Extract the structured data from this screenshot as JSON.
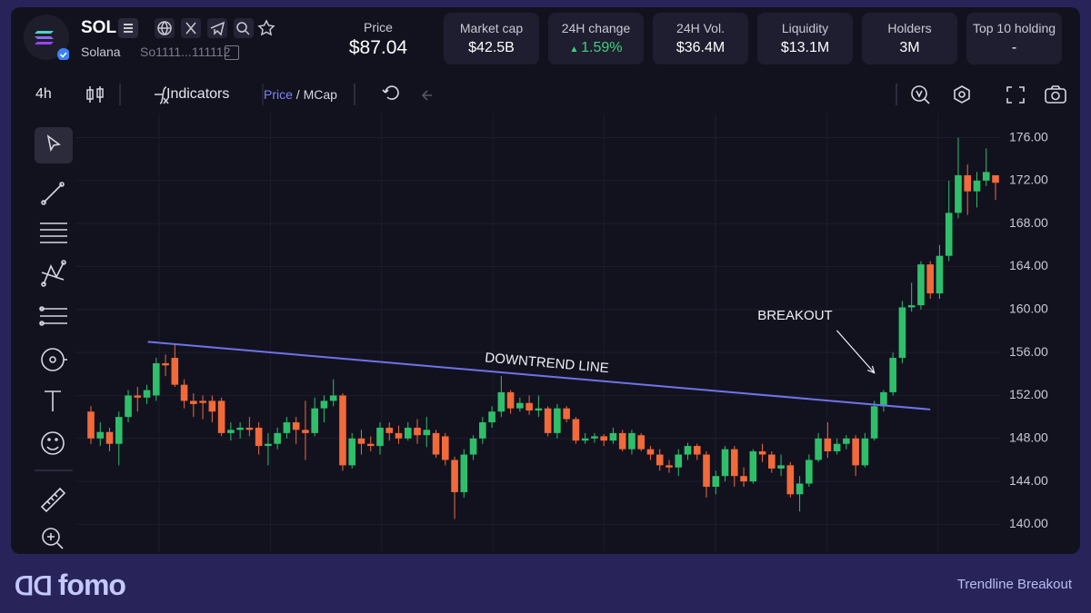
{
  "header": {
    "symbol": "SOL",
    "name": "Solana",
    "address": "So1111...111112",
    "price_label": "Price",
    "price": "$87.04",
    "stats": [
      {
        "label": "Market cap",
        "value": "$42.5B"
      },
      {
        "label": "24H change",
        "value": "1.59%"
      },
      {
        "label": "24H Vol.",
        "value": "$36.4M"
      },
      {
        "label": "Liquidity",
        "value": "$13.1M"
      },
      {
        "label": "Holders",
        "value": "3M"
      },
      {
        "label": "Top 10 holding",
        "value": "-"
      }
    ]
  },
  "toolbar": {
    "interval": "4h",
    "indicators": "Indicators",
    "price": "Price",
    "separator": " / ",
    "mcap": "MCap"
  },
  "chart_data": {
    "type": "candlestick",
    "open": [
      150.5,
      148,
      148.6,
      147.5,
      150,
      152,
      151.8,
      152,
      155,
      155.5,
      153,
      151.5,
      151.5,
      151.5,
      151.5,
      148.5,
      148.8,
      149,
      149,
      147.3,
      147.5,
      148.5,
      149.5,
      148.8,
      148.5,
      150.8,
      151.5,
      152,
      145.5,
      148,
      147.5,
      147.3,
      149,
      148.5,
      148,
      149,
      148.3,
      148.5,
      148.2,
      146,
      143,
      146.5,
      148,
      149.5,
      150.5,
      152.3,
      150.8,
      151.3,
      150.6,
      150.8,
      148.5,
      150.8,
      149.8,
      147.8,
      148,
      148.2,
      147.8,
      148.5,
      147,
      148.3,
      147,
      146.5,
      145.5,
      145.3,
      146.5,
      147.3,
      146.5,
      143.5,
      144.5,
      147,
      144.5,
      144,
      146.8,
      146.5,
      145.2,
      145.5,
      142.8,
      143.8,
      146,
      148,
      146.8,
      147.5,
      148,
      145.5,
      148,
      151,
      152.3,
      155.5,
      160.2,
      160.4,
      164.2,
      161.5,
      165,
      169,
      172.5,
      171,
      172,
      172.5
    ],
    "high": [
      151,
      149.5,
      149,
      150.5,
      152.5,
      152.8,
      153,
      155.5,
      155.8,
      156.8,
      153.5,
      152.2,
      152,
      152,
      151.8,
      149.5,
      149.5,
      150,
      149.5,
      148.5,
      149,
      150,
      150,
      151.5,
      151.8,
      152,
      153.5,
      152.2,
      148.5,
      148.8,
      148.2,
      149.5,
      149.5,
      149.2,
      149.5,
      149.8,
      150,
      148.8,
      148.5,
      146.3,
      147,
      148.3,
      150,
      151,
      153.8,
      152.5,
      151.8,
      152,
      152,
      151,
      151.2,
      151,
      150,
      148.5,
      148.5,
      148.4,
      149,
      148.8,
      148.8,
      148.5,
      147.3,
      147,
      146,
      147,
      147.6,
      147.5,
      146.8,
      145,
      147.3,
      147.3,
      145.3,
      147,
      147.5,
      146.8,
      146.5,
      145.8,
      144.5,
      146.5,
      148.5,
      149.5,
      148,
      148.3,
      148.3,
      148.5,
      151.5,
      152.5,
      156,
      160.8,
      162.5,
      164.5,
      164.5,
      166,
      172,
      176,
      173.5,
      172.8,
      175,
      172.5
    ],
    "low": [
      147.5,
      147.3,
      146.8,
      145.5,
      149.5,
      150.5,
      151.2,
      151.5,
      153.8,
      152.8,
      150.8,
      150,
      149.8,
      149.5,
      148.2,
      147.8,
      148,
      148.2,
      146.5,
      145.5,
      147,
      148,
      147.5,
      146,
      148.2,
      149.5,
      151,
      145,
      145.2,
      146.5,
      146.8,
      146.5,
      147.8,
      147.5,
      147.8,
      147.5,
      147.2,
      146.2,
      145.5,
      140.5,
      142.5,
      146,
      147.5,
      149,
      150,
      150.3,
      150.5,
      150.2,
      150,
      148.2,
      148,
      149.5,
      147.5,
      147.5,
      147.6,
      147.3,
      147.5,
      146.8,
      146.5,
      146.8,
      146,
      145,
      144.8,
      144.5,
      146,
      146,
      142.5,
      142.8,
      144,
      143.5,
      143.5,
      143.8,
      145.8,
      144.8,
      144.5,
      142.5,
      141.2,
      143.5,
      145.8,
      146.2,
      146.5,
      147,
      144.5,
      145.3,
      147.8,
      150.5,
      152,
      155,
      159.8,
      160,
      161,
      161,
      164.5,
      168.5,
      168.8,
      169.5,
      171.5,
      170.2
    ],
    "close": [
      148,
      148.6,
      147.5,
      150,
      152,
      151.8,
      152.5,
      155,
      154.8,
      153,
      151.5,
      151.2,
      151.3,
      150.5,
      148.5,
      148.8,
      149,
      148.8,
      147.3,
      147.5,
      148.5,
      149.5,
      148.8,
      148.5,
      150.8,
      151.5,
      152,
      145.5,
      148,
      147.5,
      147.3,
      149,
      148.5,
      148,
      149,
      148.3,
      148.8,
      146.5,
      146,
      143,
      146.5,
      148,
      149.5,
      150.5,
      152.3,
      150.8,
      151.3,
      150.6,
      150.8,
      148.5,
      150.8,
      149.8,
      147.8,
      148,
      148.2,
      147.8,
      148.5,
      147,
      148.5,
      147,
      146.5,
      145.5,
      145.3,
      146.5,
      147.3,
      146.5,
      143.5,
      144.5,
      147,
      144.5,
      144,
      146.8,
      146.5,
      145.2,
      145.5,
      142.8,
      143.8,
      146,
      148,
      146.8,
      147.5,
      148,
      145.5,
      148,
      151,
      152.3,
      155.5,
      160.2,
      160.4,
      164.2,
      161.5,
      165,
      169,
      172.5,
      171,
      172,
      172.8,
      171.8
    ],
    "up_color": "#2fbf6a",
    "down_color": "#f2693a",
    "ylim": [
      137.5,
      177.4
    ],
    "yticks": [
      {
        "value": 140,
        "label": "140.00"
      },
      {
        "value": 144,
        "label": "144.00"
      },
      {
        "value": 148,
        "label": "148.00"
      },
      {
        "value": 152,
        "label": "152.00"
      },
      {
        "value": 156,
        "label": "156.00"
      },
      {
        "value": 160,
        "label": "160.00"
      },
      {
        "value": 164,
        "label": "164.00"
      },
      {
        "value": 168,
        "label": "168.00"
      },
      {
        "value": 172,
        "label": "172.00"
      },
      {
        "value": 176,
        "label": "176.00"
      }
    ],
    "grid": true,
    "trendline": {
      "label": "DOWNTREND LINE",
      "color": "#6f73e8",
      "x": [
        6.1,
        90
      ],
      "y": [
        157,
        150.7
      ]
    },
    "annotation": {
      "text": "BREAKOUT",
      "x": 75.5,
      "y": 159.4,
      "arrow_x": 84,
      "arrow_y": 154.1
    }
  },
  "footer": {
    "brand": "fomo",
    "caption": "Trendline Breakout"
  }
}
